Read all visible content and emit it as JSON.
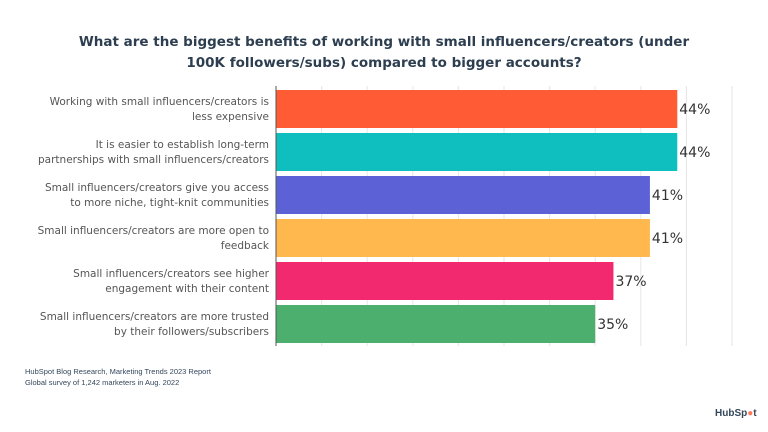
{
  "chart_data": {
    "type": "bar",
    "orientation": "horizontal",
    "title": "What are the biggest benefits of working with small influencers/creators (under 100K followers/subs) compared to bigger accounts?",
    "title_lines": [
      "What are the biggest benefits of working with small influencers/creators (under",
      "100K followers/subs) compared to bigger accounts?"
    ],
    "categories": [
      [
        "Working with small influencers/creators is",
        "less expensive"
      ],
      [
        "It is easier to establish long-term",
        "partnerships with small influencers/creators"
      ],
      [
        "Small influencers/creators give you access",
        "to more niche, tight-knit communities"
      ],
      [
        "Small influencers/creators are more open to",
        "feedback"
      ],
      [
        "Small influencers/creators see higher",
        "engagement with their content"
      ],
      [
        "Small influencers/creators are more trusted",
        "by their followers/subscribers"
      ]
    ],
    "values": [
      44,
      44,
      41,
      41,
      37,
      35
    ],
    "value_labels": [
      "44%",
      "44%",
      "41%",
      "41%",
      "37%",
      "35%"
    ],
    "colors": [
      "#ff5c35",
      "#0fbfbf",
      "#5c62d6",
      "#ffb84d",
      "#f2296e",
      "#4caf6e"
    ],
    "xlim": [
      0,
      50
    ],
    "grid": true,
    "grid_step": 5,
    "xlabel": "",
    "ylabel": ""
  },
  "footer": {
    "source_line1": "HubSpot Blog Research, Marketing Trends 2023 Report",
    "source_line2": "Global survey of 1,242 marketers in Aug. 2022"
  },
  "logo": {
    "text": "HubSpot"
  }
}
